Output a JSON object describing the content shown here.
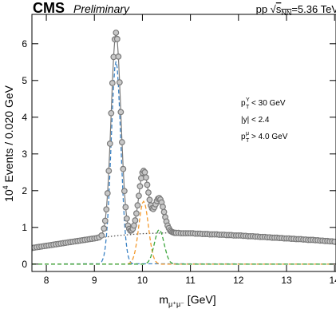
{
  "chart_data": {
    "type": "line",
    "experiment": "CMS",
    "status": "Preliminary",
    "energy": [
      "pp √",
      "s",
      "NN",
      "=5.36 TeV"
    ],
    "y_label": [
      "10",
      "4",
      " Events / 0.020 GeV"
    ],
    "x_label": [
      "m",
      "μ⁺μ⁻",
      " [GeV]"
    ],
    "annotations": [
      {
        "base": "p",
        "sub": "T",
        "sup": "Υ",
        "text": " < 30 GeV"
      },
      {
        "base": "|y| < 2.4"
      },
      {
        "base": "p",
        "sub": "T",
        "sup": "μ",
        "text": " > 4.0 GeV"
      }
    ],
    "xlim": [
      7.7,
      14.03
    ],
    "ylim": [
      -0.2,
      6.8
    ],
    "xticks": [
      8,
      9,
      10,
      11,
      12,
      13,
      14
    ],
    "yticks": [
      0,
      1,
      2,
      3,
      4,
      5,
      6
    ],
    "series": [
      {
        "color": "#7a7a7a",
        "marker": "circle",
        "x": [
          7.7,
          7.75,
          7.8,
          7.85,
          7.9,
          7.95,
          8.0,
          8.05,
          8.1,
          8.15,
          8.2,
          8.25,
          8.3,
          8.35,
          8.4,
          8.45,
          8.5,
          8.55,
          8.6,
          8.65,
          8.7,
          8.75,
          8.8,
          8.85,
          8.9,
          8.95,
          9.0,
          9.05,
          9.1,
          9.15,
          9.2,
          9.225,
          9.25,
          9.275,
          9.3,
          9.325,
          9.35,
          9.375,
          9.4,
          9.425,
          9.45,
          9.475,
          9.5,
          9.525,
          9.55,
          9.575,
          9.6,
          9.625,
          9.65,
          9.675,
          9.7,
          9.725,
          9.75,
          9.775,
          9.8,
          9.825,
          9.85,
          9.875,
          9.9,
          9.925,
          9.95,
          9.975,
          10.0,
          10.025,
          10.05,
          10.075,
          10.1,
          10.125,
          10.15,
          10.175,
          10.2,
          10.225,
          10.25,
          10.275,
          10.3,
          10.325,
          10.35,
          10.375,
          10.4,
          10.425,
          10.45,
          10.475,
          10.5,
          10.525,
          10.55,
          10.575,
          10.6,
          10.625,
          10.65,
          10.675,
          10.7,
          10.75,
          10.8,
          10.85,
          10.9,
          10.95,
          11.0,
          11.05,
          11.1,
          11.15,
          11.2,
          11.25,
          11.3,
          11.35,
          11.4,
          11.45,
          11.5,
          11.55,
          11.6,
          11.65,
          11.7,
          11.75,
          11.8,
          11.85,
          11.9,
          11.95,
          12.0,
          12.05,
          12.1,
          12.15,
          12.2,
          12.25,
          12.3,
          12.35,
          12.4,
          12.45,
          12.5,
          12.55,
          12.6,
          12.65,
          12.7,
          12.75,
          12.8,
          12.85,
          12.9,
          12.95,
          13.0,
          13.05,
          13.1,
          13.15,
          13.2,
          13.25,
          13.3,
          13.35,
          13.4,
          13.45,
          13.5,
          13.55,
          13.6,
          13.65,
          13.7,
          13.75,
          13.8,
          13.85,
          13.9,
          13.95,
          14.0
        ],
        "values": [
          0.44,
          0.45,
          0.46,
          0.47,
          0.48,
          0.49,
          0.5,
          0.51,
          0.52,
          0.53,
          0.54,
          0.55,
          0.56,
          0.57,
          0.58,
          0.59,
          0.6,
          0.61,
          0.62,
          0.63,
          0.64,
          0.65,
          0.66,
          0.67,
          0.68,
          0.69,
          0.7,
          0.71,
          0.73,
          0.78,
          0.97,
          1.18,
          1.49,
          1.93,
          2.54,
          3.28,
          4.11,
          4.93,
          5.64,
          6.12,
          6.3,
          6.13,
          5.65,
          4.95,
          4.14,
          3.32,
          2.59,
          1.99,
          1.55,
          1.24,
          1.05,
          0.96,
          0.91,
          0.92,
          0.96,
          1.05,
          1.19,
          1.38,
          1.6,
          1.86,
          2.12,
          2.34,
          2.49,
          2.54,
          2.5,
          2.36,
          2.16,
          1.95,
          1.75,
          1.6,
          1.52,
          1.5,
          1.55,
          1.63,
          1.72,
          1.78,
          1.8,
          1.76,
          1.68,
          1.56,
          1.42,
          1.28,
          1.16,
          1.05,
          0.98,
          0.92,
          0.89,
          0.87,
          0.86,
          0.85,
          0.85,
          0.85,
          0.84,
          0.84,
          0.84,
          0.84,
          0.84,
          0.84,
          0.83,
          0.83,
          0.83,
          0.82,
          0.82,
          0.82,
          0.81,
          0.81,
          0.81,
          0.81,
          0.8,
          0.8,
          0.8,
          0.79,
          0.79,
          0.79,
          0.78,
          0.78,
          0.78,
          0.78,
          0.77,
          0.77,
          0.76,
          0.76,
          0.76,
          0.75,
          0.75,
          0.74,
          0.74,
          0.74,
          0.73,
          0.73,
          0.72,
          0.72,
          0.72,
          0.71,
          0.71,
          0.7,
          0.7,
          0.7,
          0.69,
          0.69,
          0.68,
          0.68,
          0.68,
          0.67,
          0.67,
          0.66,
          0.66,
          0.66,
          0.65,
          0.65,
          0.64,
          0.64,
          0.63,
          0.63,
          0.62,
          0.62,
          0.61
        ]
      },
      {
        "color": "#555555",
        "dash": "dotted",
        "x": [
          7.7,
          8,
          8.5,
          9,
          9.5,
          10,
          10.5,
          11,
          11.5,
          12,
          12.5,
          13,
          13.5,
          14.0
        ],
        "values": [
          0.44,
          0.5,
          0.6,
          0.7,
          0.78,
          0.83,
          0.85,
          0.84,
          0.81,
          0.78,
          0.74,
          0.7,
          0.66,
          0.61
        ]
      },
      {
        "color": "#3b82c4",
        "dash": "dashed",
        "x": [
          7.7,
          9.1,
          9.125,
          9.15,
          9.175,
          9.2,
          9.225,
          9.25,
          9.275,
          9.3,
          9.325,
          9.35,
          9.375,
          9.4,
          9.425,
          9.45,
          9.475,
          9.5,
          9.525,
          9.55,
          9.575,
          9.6,
          9.625,
          9.65,
          9.675,
          9.7,
          9.725,
          9.75,
          9.775,
          9.8,
          14.0
        ],
        "values": [
          0,
          0.01,
          0.03,
          0.06,
          0.13,
          0.24,
          0.44,
          0.75,
          1.19,
          1.79,
          2.53,
          3.35,
          4.17,
          4.87,
          5.35,
          5.52,
          5.35,
          4.87,
          4.17,
          3.35,
          2.53,
          1.79,
          1.19,
          0.75,
          0.44,
          0.24,
          0.13,
          0.06,
          0.03,
          0.01,
          0
        ]
      },
      {
        "color": "#f39a2e",
        "dash": "dashed",
        "x": [
          7.7,
          9.675,
          9.7,
          9.725,
          9.75,
          9.775,
          9.8,
          9.825,
          9.85,
          9.875,
          9.9,
          9.925,
          9.95,
          9.975,
          10.0,
          10.025,
          10.05,
          10.075,
          10.1,
          10.125,
          10.15,
          10.175,
          10.2,
          10.225,
          10.25,
          10.275,
          10.3,
          10.325,
          10.35,
          10.375,
          14.0
        ],
        "values": [
          0,
          0,
          0.01,
          0.02,
          0.04,
          0.08,
          0.14,
          0.23,
          0.37,
          0.56,
          0.78,
          1.04,
          1.29,
          1.51,
          1.66,
          1.71,
          1.66,
          1.51,
          1.29,
          1.04,
          0.78,
          0.56,
          0.37,
          0.23,
          0.14,
          0.08,
          0.04,
          0.02,
          0.01,
          0,
          0
        ]
      },
      {
        "color": "#3da63d",
        "dash": "dashed",
        "x": [
          7.7,
          10.0,
          10.025,
          10.05,
          10.075,
          10.1,
          10.125,
          10.15,
          10.175,
          10.2,
          10.225,
          10.25,
          10.275,
          10.3,
          10.325,
          10.35,
          10.375,
          10.4,
          10.425,
          10.45,
          10.475,
          10.5,
          10.525,
          10.55,
          10.575,
          10.6,
          10.625,
          10.65,
          10.675,
          10.7,
          14.0
        ],
        "values": [
          0,
          0,
          0,
          0.01,
          0.02,
          0.04,
          0.07,
          0.13,
          0.2,
          0.31,
          0.43,
          0.57,
          0.71,
          0.83,
          0.91,
          0.94,
          0.91,
          0.83,
          0.71,
          0.57,
          0.43,
          0.31,
          0.2,
          0.13,
          0.07,
          0.04,
          0.02,
          0.01,
          0,
          0,
          0
        ]
      }
    ]
  }
}
